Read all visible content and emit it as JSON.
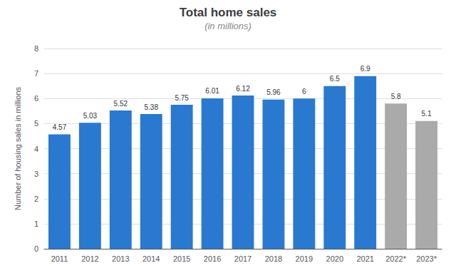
{
  "chart_data": {
    "type": "bar",
    "title": "Total home sales",
    "subtitle": "(in millions)",
    "categories": [
      "2011",
      "2012",
      "2013",
      "2014",
      "2015",
      "2016",
      "2017",
      "2018",
      "2019",
      "2020",
      "2021",
      "2022*",
      "2023*"
    ],
    "values": [
      4.57,
      5.03,
      5.52,
      5.38,
      5.75,
      6.01,
      6.12,
      5.96,
      6,
      6.5,
      6.9,
      5.8,
      5.1
    ],
    "colors": [
      "#2979D0",
      "#2979D0",
      "#2979D0",
      "#2979D0",
      "#2979D0",
      "#2979D0",
      "#2979D0",
      "#2979D0",
      "#2979D0",
      "#2979D0",
      "#2979D0",
      "#AAAAAA",
      "#AAAAAA"
    ],
    "ylabel": "Number of housing sales in millions",
    "ylim": [
      0,
      8
    ],
    "yticks": [
      0,
      1,
      2,
      3,
      4,
      5,
      6,
      7,
      8
    ],
    "grid": true,
    "data_labels": true
  }
}
